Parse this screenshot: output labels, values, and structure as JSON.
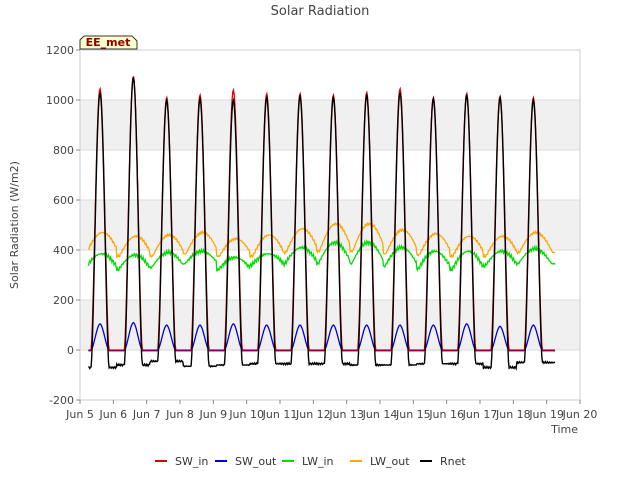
{
  "chart_data": {
    "type": "line",
    "title": "Solar Radiation",
    "xlabel": "Time",
    "ylabel": "Solar Radiation (W/m2)",
    "site_label": "EE_met",
    "ylim": [
      -200,
      1200
    ],
    "xlim": [
      5,
      20
    ],
    "yticks": [
      -200,
      0,
      200,
      400,
      600,
      800,
      1000,
      1200
    ],
    "xticks": [
      {
        "day": 5,
        "label": "Jun 5"
      },
      {
        "day": 6,
        "label": "Jun 6"
      },
      {
        "day": 7,
        "label": "Jun 7"
      },
      {
        "day": 8,
        "label": "Jun 8"
      },
      {
        "day": 9,
        "label": "Jun 9"
      },
      {
        "day": 10,
        "label": "Jun 10"
      },
      {
        "day": 11,
        "label": "Jun 11"
      },
      {
        "day": 12,
        "label": "Jun 12"
      },
      {
        "day": 13,
        "label": "Jun 13"
      },
      {
        "day": 14,
        "label": "Jun 14"
      },
      {
        "day": 15,
        "label": "Jun 15"
      },
      {
        "day": 16,
        "label": "Jun 16"
      },
      {
        "day": 17,
        "label": "Jun 17"
      },
      {
        "day": 18,
        "label": "Jun 18"
      },
      {
        "day": 19,
        "label": "Jun 19"
      },
      {
        "day": 20,
        "label": "Jun 20"
      }
    ],
    "grid": true,
    "band_fill": "#f0f0f0",
    "legend_position": "bottom-center",
    "data_range": {
      "start_day": 5.25,
      "end_day": 19.25
    },
    "daily_peak_day": [
      5.6,
      6.6,
      7.6,
      8.6,
      9.6,
      10.6,
      11.6,
      12.6,
      13.6,
      14.6,
      15.6,
      16.6,
      17.6,
      18.6
    ],
    "series": [
      {
        "name": "SW_in",
        "color": "#dd0000",
        "night_value": 0,
        "daily_peak": [
          1045,
          1095,
          1010,
          1020,
          1040,
          1025,
          1025,
          1020,
          1030,
          1045,
          1010,
          1025,
          1015,
          1010
        ]
      },
      {
        "name": "SW_out",
        "color": "#0000dd",
        "night_value": -3,
        "daily_peak": [
          105,
          110,
          100,
          100,
          105,
          100,
          100,
          100,
          100,
          100,
          100,
          105,
          95,
          100
        ]
      },
      {
        "name": "LW_in",
        "color": "#00dd00",
        "daily_min": [
          325,
          320,
          330,
          345,
          320,
          340,
          345,
          345,
          345,
          335,
          325,
          320,
          335,
          345
        ],
        "daily_max": [
          385,
          380,
          390,
          395,
          370,
          385,
          410,
          430,
          430,
          410,
          395,
          395,
          395,
          405
        ]
      },
      {
        "name": "LW_out",
        "color": "#ffa500",
        "daily_min": [
          385,
          375,
          375,
          385,
          375,
          375,
          390,
          395,
          395,
          385,
          380,
          375,
          375,
          390
        ],
        "daily_max": [
          470,
          455,
          460,
          470,
          445,
          460,
          485,
          505,
          505,
          480,
          465,
          455,
          455,
          470
        ]
      },
      {
        "name": "Rnet",
        "color": "#000000",
        "daily_peak": [
          1030,
          1090,
          1000,
          1005,
          1000,
          1010,
          1015,
          1010,
          1020,
          1030,
          1005,
          1020,
          1010,
          1000
        ],
        "night_min": [
          -70,
          -60,
          -45,
          -65,
          -60,
          -55,
          -55,
          -55,
          -60,
          -60,
          -55,
          -55,
          -70,
          -50
        ]
      }
    ]
  }
}
